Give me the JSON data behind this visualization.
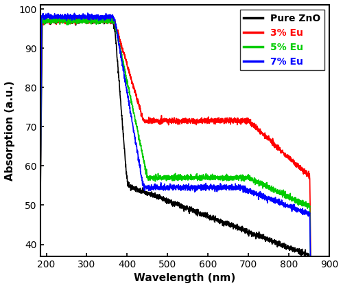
{
  "title": "",
  "xlabel": "Wavelength (nm)",
  "ylabel": "Absorption (a.u.)",
  "xlim": [
    185,
    860
  ],
  "ylim": [
    37,
    101
  ],
  "xticks": [
    200,
    300,
    400,
    500,
    600,
    700,
    800,
    900
  ],
  "yticks": [
    40,
    50,
    60,
    70,
    80,
    90,
    100
  ],
  "legend": [
    {
      "label": "Pure ZnO",
      "color": "#000000"
    },
    {
      "label": "3% Eu",
      "color": "#ff0000"
    },
    {
      "label": "5% Eu",
      "color": "#00cc00"
    },
    {
      "label": "7% Eu",
      "color": "#0000ff"
    }
  ],
  "background_color": "#ffffff",
  "linewidth": 1.2,
  "noise_scale": 0.35
}
